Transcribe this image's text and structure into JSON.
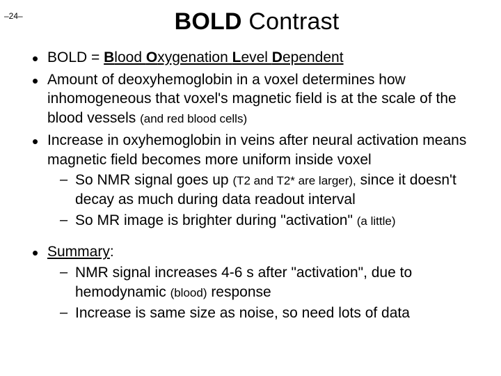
{
  "page_number": "–24–",
  "title_bold": "BOLD",
  "title_rest": " Contrast",
  "b1": {
    "pre": "BOLD = ",
    "t1": "B",
    "w1": "lood ",
    "t2": "O",
    "w2": "xygenation ",
    "t3": "L",
    "w3": "evel ",
    "t4": "D",
    "w4": "ependent"
  },
  "b2": "Amount of deoxyhemoglobin in a voxel determines how inhomogeneous that voxel's magnetic field is at the scale of the blood vessels ",
  "b2_small": "(and red blood cells)",
  "b3": "Increase in oxyhemoglobin in veins after neural activation means magnetic field becomes more uniform inside voxel",
  "b3s1a": "So NMR signal goes up ",
  "b3s1b": "(T2 and T2* are larger),",
  "b3s1c": " since it doesn't decay as much during data readout interval",
  "b3s2a": "So MR image is brighter during \"activation\" ",
  "b3s2b": "(a little)",
  "b4_label": "Summary",
  "b4_colon": ":",
  "b4s1a": "NMR signal increases 4-6 s after \"activation\", due to hemodynamic ",
  "b4s1b": "(blood)",
  "b4s1c": " response",
  "b4s2": "Increase is same size as noise, so need lots of data"
}
